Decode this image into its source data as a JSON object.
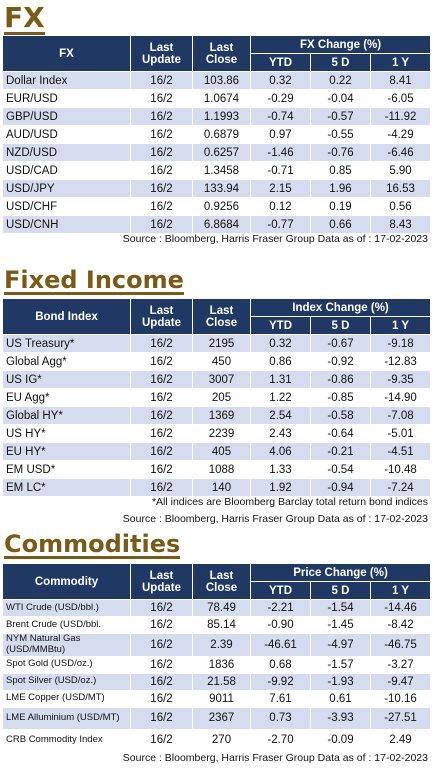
{
  "fx": {
    "title": "FX",
    "headers": {
      "name": "FX",
      "last_update": "Last Update",
      "last_close": "Last Close",
      "group": "FX Change (%)",
      "ytd": "YTD",
      "d5": "5 D",
      "y1": "1 Y"
    },
    "rows": [
      {
        "name": "Dollar Index",
        "update": "16/2",
        "close": "103.86",
        "ytd": "0.32",
        "d5": "0.22",
        "y1": "8.41"
      },
      {
        "name": "EUR/USD",
        "update": "16/2",
        "close": "1.0674",
        "ytd": "-0.29",
        "d5": "-0.04",
        "y1": "-6.05"
      },
      {
        "name": "GBP/USD",
        "update": "16/2",
        "close": "1.1993",
        "ytd": "-0.74",
        "d5": "-0.57",
        "y1": "-11.92"
      },
      {
        "name": "AUD/USD",
        "update": "16/2",
        "close": "0.6879",
        "ytd": "0.97",
        "d5": "-0.55",
        "y1": "-4.29"
      },
      {
        "name": "NZD/USD",
        "update": "16/2",
        "close": "0.6257",
        "ytd": "-1.46",
        "d5": "-0.76",
        "y1": "-6.46"
      },
      {
        "name": "USD/CAD",
        "update": "16/2",
        "close": "1.3458",
        "ytd": "-0.71",
        "d5": "0.85",
        "y1": "5.90"
      },
      {
        "name": "USD/JPY",
        "update": "16/2",
        "close": "133.94",
        "ytd": "2.15",
        "d5": "1.96",
        "y1": "16.53"
      },
      {
        "name": "USD/CHF",
        "update": "16/2",
        "close": "0.9256",
        "ytd": "0.12",
        "d5": "0.19",
        "y1": "0.56"
      },
      {
        "name": "USD/CNH",
        "update": "16/2",
        "close": "6.8684",
        "ytd": "-0.77",
        "d5": "0.66",
        "y1": "8.43"
      }
    ],
    "source": "Source : Bloomberg, Harris Fraser Group Data as of : 17-02-2023"
  },
  "fixed_income": {
    "title": "Fixed Income",
    "headers": {
      "name": "Bond Index",
      "last_update": "Last Update",
      "last_close": "Last Close",
      "group": "Index Change (%)",
      "ytd": "YTD",
      "d5": "5 D",
      "y1": "1 Y"
    },
    "rows": [
      {
        "name": "US Treasury*",
        "update": "16/2",
        "close": "2195",
        "ytd": "0.32",
        "d5": "-0.67",
        "y1": "-9.18"
      },
      {
        "name": "Global Agg*",
        "update": "16/2",
        "close": "450",
        "ytd": "0.86",
        "d5": "-0.92",
        "y1": "-12.83"
      },
      {
        "name": "US IG*",
        "update": "16/2",
        "close": "3007",
        "ytd": "1.31",
        "d5": "-0.86",
        "y1": "-9.35"
      },
      {
        "name": "EU Agg*",
        "update": "16/2",
        "close": "205",
        "ytd": "1.22",
        "d5": "-0.85",
        "y1": "-14.90"
      },
      {
        "name": "Global HY*",
        "update": "16/2",
        "close": "1369",
        "ytd": "2.54",
        "d5": "-0.58",
        "y1": "-7.08"
      },
      {
        "name": "US HY*",
        "update": "16/2",
        "close": "2239",
        "ytd": "2.43",
        "d5": "-0.64",
        "y1": "-5.01"
      },
      {
        "name": "EU HY*",
        "update": "16/2",
        "close": "405",
        "ytd": "4.06",
        "d5": "-0.21",
        "y1": "-4.51"
      },
      {
        "name": "EM USD*",
        "update": "16/2",
        "close": "1088",
        "ytd": "1.33",
        "d5": "-0.54",
        "y1": "-10.48"
      },
      {
        "name": "EM LC*",
        "update": "16/2",
        "close": "140",
        "ytd": "1.92",
        "d5": "-0.94",
        "y1": "-7.24"
      }
    ],
    "note": "*All indices are Bloomberg Barclay total return bond indices",
    "source": "Source : Bloomberg, Harris Fraser Group Data as of : 17-02-2023"
  },
  "commodities": {
    "title": "Commodities",
    "headers": {
      "name": "Commodity",
      "last_update": "Last Update",
      "last_close": "Last Close",
      "group": "Price Change (%)",
      "ytd": "YTD",
      "d5": "5 D",
      "y1": "1 Y"
    },
    "rows": [
      {
        "name": "WTI Crude (USD/bbl.)",
        "update": "16/2",
        "close": "78.49",
        "ytd": "-2.21",
        "d5": "-1.54",
        "y1": "-14.46",
        "tall": false
      },
      {
        "name": "Brent Crude (USD/bbl.",
        "update": "16/2",
        "close": "85.14",
        "ytd": "-0.90",
        "d5": "-1.45",
        "y1": "-8.42",
        "tall": false
      },
      {
        "name": "NYM Natural Gas (USD/MMBtu)",
        "update": "16/2",
        "close": "2.39",
        "ytd": "-46.61",
        "d5": "-4.97",
        "y1": "-46.75",
        "tall": true
      },
      {
        "name": "Spot Gold (USD/oz.)",
        "update": "16/2",
        "close": "1836",
        "ytd": "0.68",
        "d5": "-1.57",
        "y1": "-3.27",
        "tall": false
      },
      {
        "name": "Spot Silver  (USD/oz.)",
        "update": "16/2",
        "close": "21.58",
        "ytd": "-9.92",
        "d5": "-1.93",
        "y1": "-9.47",
        "tall": false
      },
      {
        "name": "LME Copper  (USD/MT)",
        "update": "16/2",
        "close": "9011",
        "ytd": "7.61",
        "d5": "0.61",
        "y1": "-10.16",
        "tall": false
      },
      {
        "name": "LME Alluminium (USD/MT)",
        "update": "16/2",
        "close": "2367",
        "ytd": "0.73",
        "d5": "-3.93",
        "y1": "-27.51",
        "tall": true
      },
      {
        "name": "CRB Commodity Index",
        "update": "16/2",
        "close": "270",
        "ytd": "-2.70",
        "d5": "-0.09",
        "y1": "2.49",
        "tall": true
      }
    ],
    "source": "Source : Bloomberg, Harris Fraser Group Data as of : 17-02-2023"
  },
  "colors": {
    "header_bg": "#1f3864",
    "stripe": "#d6dcf0",
    "title": "#7a5a14"
  }
}
